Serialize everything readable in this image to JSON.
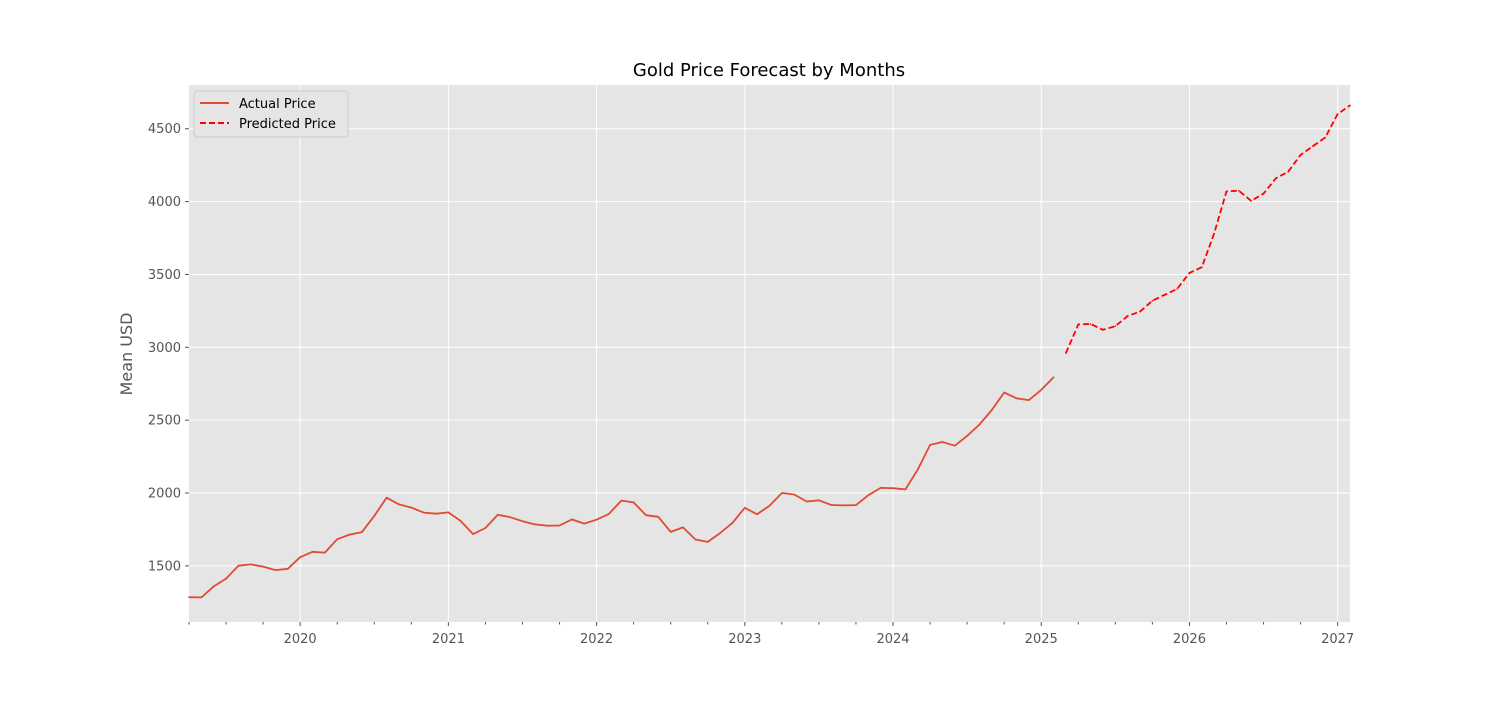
{
  "chart_data": {
    "type": "line",
    "title": "Gold Price Forecast by Months",
    "xlabel": "",
    "ylabel": "Mean USD",
    "x_axis": "date",
    "xlim": [
      "2019-04-01",
      "2027-02-01"
    ],
    "ylim": [
      1115,
      4800
    ],
    "x_ticks": [
      "2020",
      "2021",
      "2022",
      "2023",
      "2024",
      "2025",
      "2026",
      "2027"
    ],
    "y_ticks": [
      1500,
      2000,
      2500,
      3000,
      3500,
      4000,
      4500
    ],
    "grid": true,
    "legend_position": "top-left",
    "series": [
      {
        "name": "Actual Price",
        "color": "#e24a33",
        "style": "solid",
        "points": [
          [
            "2019-04-01",
            1285
          ],
          [
            "2019-05-01",
            1284
          ],
          [
            "2019-06-01",
            1359
          ],
          [
            "2019-07-01",
            1413
          ],
          [
            "2019-08-01",
            1501
          ],
          [
            "2019-09-01",
            1510
          ],
          [
            "2019-10-01",
            1495
          ],
          [
            "2019-11-01",
            1471
          ],
          [
            "2019-12-01",
            1480
          ],
          [
            "2020-01-01",
            1560
          ],
          [
            "2020-02-01",
            1597
          ],
          [
            "2020-03-01",
            1591
          ],
          [
            "2020-04-01",
            1683
          ],
          [
            "2020-05-01",
            1715
          ],
          [
            "2020-06-01",
            1732
          ],
          [
            "2020-07-01",
            1843
          ],
          [
            "2020-08-01",
            1968
          ],
          [
            "2020-09-01",
            1922
          ],
          [
            "2020-10-01",
            1900
          ],
          [
            "2020-11-01",
            1866
          ],
          [
            "2020-12-01",
            1858
          ],
          [
            "2021-01-01",
            1867
          ],
          [
            "2021-02-01",
            1808
          ],
          [
            "2021-03-01",
            1718
          ],
          [
            "2021-04-01",
            1760
          ],
          [
            "2021-05-01",
            1851
          ],
          [
            "2021-06-01",
            1834
          ],
          [
            "2021-07-01",
            1807
          ],
          [
            "2021-08-01",
            1785
          ],
          [
            "2021-09-01",
            1776
          ],
          [
            "2021-10-01",
            1777
          ],
          [
            "2021-11-01",
            1819
          ],
          [
            "2021-12-01",
            1790
          ],
          [
            "2022-01-01",
            1817
          ],
          [
            "2022-02-01",
            1857
          ],
          [
            "2022-03-01",
            1948
          ],
          [
            "2022-04-01",
            1936
          ],
          [
            "2022-05-01",
            1848
          ],
          [
            "2022-06-01",
            1837
          ],
          [
            "2022-07-01",
            1733
          ],
          [
            "2022-08-01",
            1764
          ],
          [
            "2022-09-01",
            1681
          ],
          [
            "2022-10-01",
            1665
          ],
          [
            "2022-11-01",
            1725
          ],
          [
            "2022-12-01",
            1795
          ],
          [
            "2023-01-01",
            1899
          ],
          [
            "2023-02-01",
            1854
          ],
          [
            "2023-03-01",
            1913
          ],
          [
            "2023-04-01",
            2000
          ],
          [
            "2023-05-01",
            1990
          ],
          [
            "2023-06-01",
            1942
          ],
          [
            "2023-07-01",
            1950
          ],
          [
            "2023-08-01",
            1918
          ],
          [
            "2023-09-01",
            1915
          ],
          [
            "2023-10-01",
            1917
          ],
          [
            "2023-11-01",
            1985
          ],
          [
            "2023-12-01",
            2035
          ],
          [
            "2024-01-01",
            2033
          ],
          [
            "2024-02-01",
            2025
          ],
          [
            "2024-03-01",
            2160
          ],
          [
            "2024-04-01",
            2330
          ],
          [
            "2024-05-01",
            2350
          ],
          [
            "2024-06-01",
            2325
          ],
          [
            "2024-07-01",
            2392
          ],
          [
            "2024-08-01",
            2470
          ],
          [
            "2024-09-01",
            2570
          ],
          [
            "2024-10-01",
            2690
          ],
          [
            "2024-11-01",
            2650
          ],
          [
            "2024-12-01",
            2638
          ],
          [
            "2025-01-01",
            2708
          ],
          [
            "2025-02-01",
            2794
          ]
        ]
      },
      {
        "name": "Predicted Price",
        "color": "#ff0000",
        "style": "dashed",
        "points": [
          [
            "2025-03-01",
            2960
          ],
          [
            "2025-04-01",
            3157
          ],
          [
            "2025-05-01",
            3160
          ],
          [
            "2025-06-01",
            3120
          ],
          [
            "2025-07-01",
            3145
          ],
          [
            "2025-08-01",
            3215
          ],
          [
            "2025-09-01",
            3245
          ],
          [
            "2025-10-01",
            3320
          ],
          [
            "2025-11-01",
            3360
          ],
          [
            "2025-12-01",
            3400
          ],
          [
            "2026-01-01",
            3510
          ],
          [
            "2026-02-01",
            3550
          ],
          [
            "2026-03-01",
            3780
          ],
          [
            "2026-04-01",
            4070
          ],
          [
            "2026-05-01",
            4075
          ],
          [
            "2026-06-01",
            4005
          ],
          [
            "2026-07-01",
            4055
          ],
          [
            "2026-08-01",
            4160
          ],
          [
            "2026-09-01",
            4205
          ],
          [
            "2026-10-01",
            4320
          ],
          [
            "2026-11-01",
            4380
          ],
          [
            "2026-12-01",
            4440
          ],
          [
            "2027-01-01",
            4600
          ],
          [
            "2027-02-01",
            4660
          ]
        ]
      }
    ]
  }
}
